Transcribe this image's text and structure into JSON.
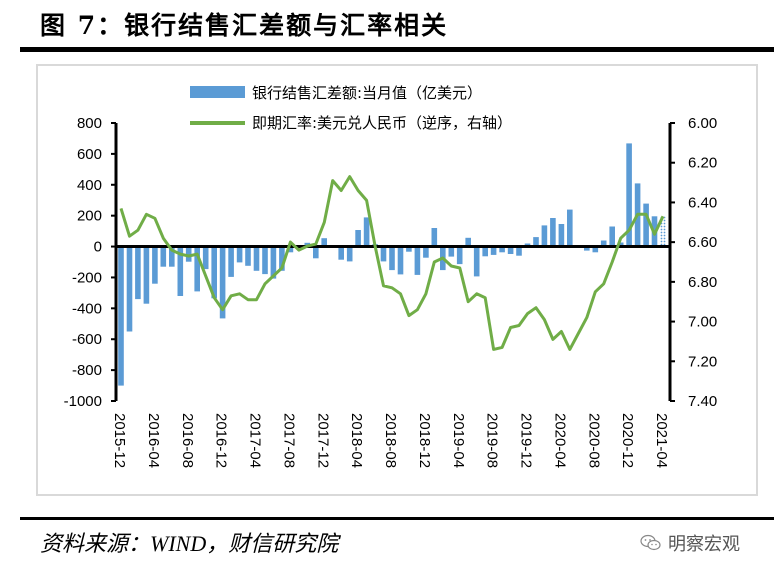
{
  "figure": {
    "title": "图 7：银行结售汇差额与汇率相关",
    "source": "资料来源：WIND，财信研究院",
    "watermark": "明察宏观",
    "watermark_icon": "wechat-icon"
  },
  "colors": {
    "bar": "#5b9bd5",
    "line": "#70ad47",
    "axis": "#000000",
    "frame": "#d9d9d9"
  },
  "chart_data": {
    "type": "bar+line",
    "title": "银行结售汇差额与汇率相关",
    "legend_position": "top-center",
    "legend": [
      {
        "name": "银行结售汇差额:当月值（亿美元）",
        "type": "bar",
        "axis": "left"
      },
      {
        "name": "即期汇率:美元兑人民币（逆序，右轴）",
        "type": "line",
        "axis": "right"
      }
    ],
    "x": [
      "2015-12",
      "2016-01",
      "2016-02",
      "2016-03",
      "2016-04",
      "2016-05",
      "2016-06",
      "2016-07",
      "2016-08",
      "2016-09",
      "2016-10",
      "2016-11",
      "2016-12",
      "2017-01",
      "2017-02",
      "2017-03",
      "2017-04",
      "2017-05",
      "2017-06",
      "2017-07",
      "2017-08",
      "2017-09",
      "2017-10",
      "2017-11",
      "2017-12",
      "2018-01",
      "2018-02",
      "2018-03",
      "2018-04",
      "2018-05",
      "2018-06",
      "2018-07",
      "2018-08",
      "2018-09",
      "2018-10",
      "2018-11",
      "2018-12",
      "2019-01",
      "2019-02",
      "2019-03",
      "2019-04",
      "2019-05",
      "2019-06",
      "2019-07",
      "2019-08",
      "2019-09",
      "2019-10",
      "2019-11",
      "2019-12",
      "2020-01",
      "2020-02",
      "2020-03",
      "2020-04",
      "2020-05",
      "2020-06",
      "2020-07",
      "2020-08",
      "2020-09",
      "2020-10",
      "2020-11",
      "2020-12",
      "2021-01",
      "2021-02",
      "2021-03",
      "2021-04"
    ],
    "x_tick_labels": [
      "2015-12",
      "2016-04",
      "2016-08",
      "2016-12",
      "2017-04",
      "2017-08",
      "2017-12",
      "2018-04",
      "2018-08",
      "2018-12",
      "2019-04",
      "2019-08",
      "2019-12",
      "2020-04",
      "2020-08",
      "2020-12",
      "2021-04"
    ],
    "left_axis": {
      "label": "",
      "ylim": [
        -1000,
        800
      ],
      "ticks": [
        "800",
        "600",
        "400",
        "200",
        "0",
        "-200",
        "-400",
        "-600",
        "-800",
        "-1000"
      ],
      "tick_values": [
        800,
        600,
        400,
        200,
        0,
        -200,
        -400,
        -600,
        -800,
        -1000
      ]
    },
    "right_axis": {
      "label": "",
      "ylim": [
        6.0,
        7.4
      ],
      "inverted": true,
      "ticks": [
        "6.00",
        "6.20",
        "6.40",
        "6.60",
        "6.80",
        "7.00",
        "7.20",
        "7.40"
      ],
      "tick_values": [
        6.0,
        6.2,
        6.4,
        6.6,
        6.8,
        7.0,
        7.2,
        7.4
      ]
    },
    "series": [
      {
        "name": "银行结售汇差额:当月值（亿美元）",
        "type": "bar",
        "values": [
          -900,
          -550,
          -340,
          -370,
          -240,
          -130,
          -130,
          -320,
          -98,
          -290,
          -146,
          -335,
          -465,
          -196,
          -102,
          -124,
          -157,
          -178,
          -207,
          -157,
          -37,
          -5,
          24,
          -76,
          54,
          -5,
          -85,
          -96,
          107,
          189,
          15,
          -96,
          -152,
          -180,
          -33,
          -183,
          -72,
          120,
          -152,
          -65,
          -113,
          57,
          -193,
          -63,
          -54,
          -37,
          -48,
          -59,
          20,
          61,
          137,
          185,
          146,
          239,
          -2,
          -26,
          -37,
          39,
          130,
          26,
          668,
          409,
          278,
          196,
          196
        ],
        "last_value_estimated": true
      },
      {
        "name": "即期汇率:美元兑人民币（逆序，右轴）",
        "type": "line",
        "values": [
          6.43,
          6.57,
          6.54,
          6.46,
          6.48,
          6.58,
          6.64,
          6.66,
          6.67,
          6.66,
          6.77,
          6.88,
          6.94,
          6.87,
          6.86,
          6.89,
          6.89,
          6.81,
          6.77,
          6.73,
          6.6,
          6.64,
          6.62,
          6.61,
          6.5,
          6.29,
          6.34,
          6.27,
          6.34,
          6.39,
          6.62,
          6.82,
          6.83,
          6.86,
          6.97,
          6.94,
          6.86,
          6.7,
          6.68,
          6.72,
          6.73,
          6.9,
          6.86,
          6.88,
          7.14,
          7.13,
          7.03,
          7.02,
          6.96,
          6.93,
          6.99,
          7.09,
          7.05,
          7.14,
          7.06,
          6.98,
          6.85,
          6.81,
          6.7,
          6.58,
          6.54,
          6.46,
          6.46,
          6.56,
          6.47
        ]
      }
    ],
    "grid": false
  }
}
